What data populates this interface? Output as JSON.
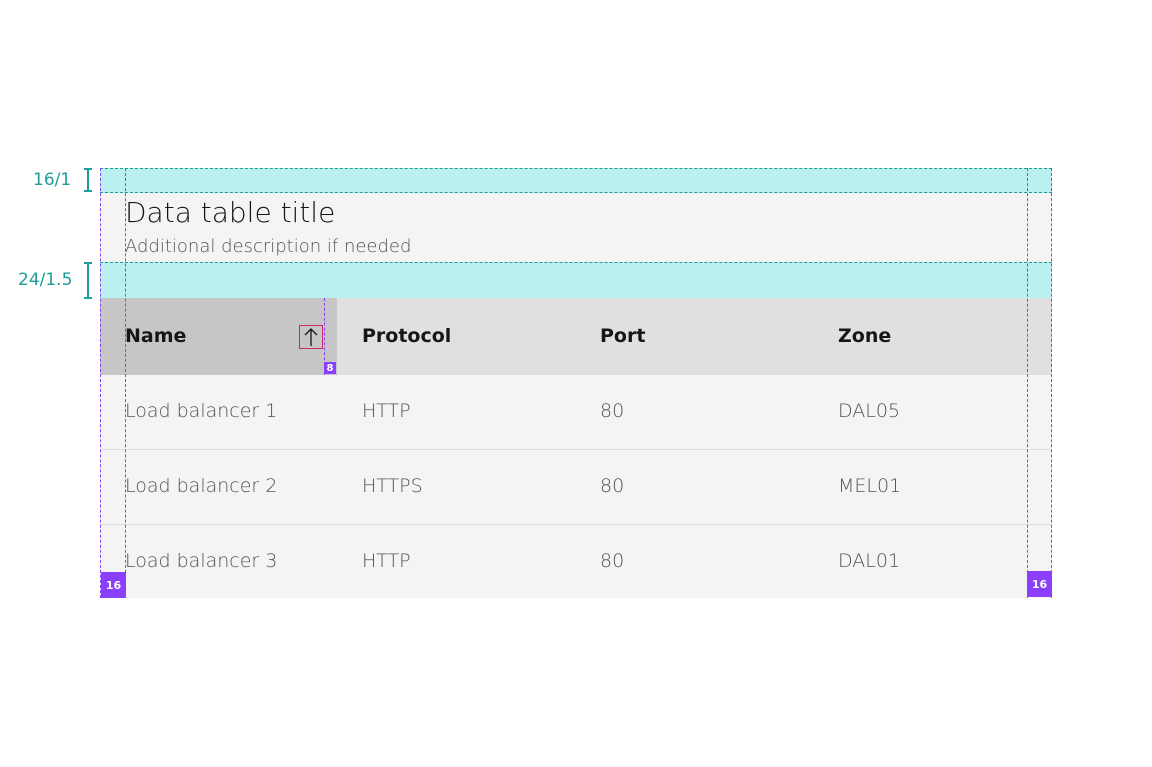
{
  "table": {
    "title": "Data table title",
    "description": "Additional description if needed",
    "headers": [
      "Name",
      "Protocol",
      "Port",
      "Zone"
    ],
    "sort_icon": "arrow-up-icon",
    "rows": [
      [
        "Load balancer 1",
        "HTTP",
        "80",
        "DAL05"
      ],
      [
        "Load balancer 2",
        "HTTPS",
        "80",
        "MEL01"
      ],
      [
        "Load balancer 3",
        "HTTP",
        "80",
        "DAL01"
      ]
    ]
  },
  "annotations": {
    "top_spacing": "16/1",
    "title_bottom_spacing": "24/1.5",
    "sort_icon_padding": "8",
    "left_padding": "16",
    "right_padding": "16"
  },
  "colors": {
    "spacing_band": "#baf0ef",
    "guide": "#8a3ffc",
    "spec_text": "#1f9c98",
    "highlight": "#d02670"
  }
}
